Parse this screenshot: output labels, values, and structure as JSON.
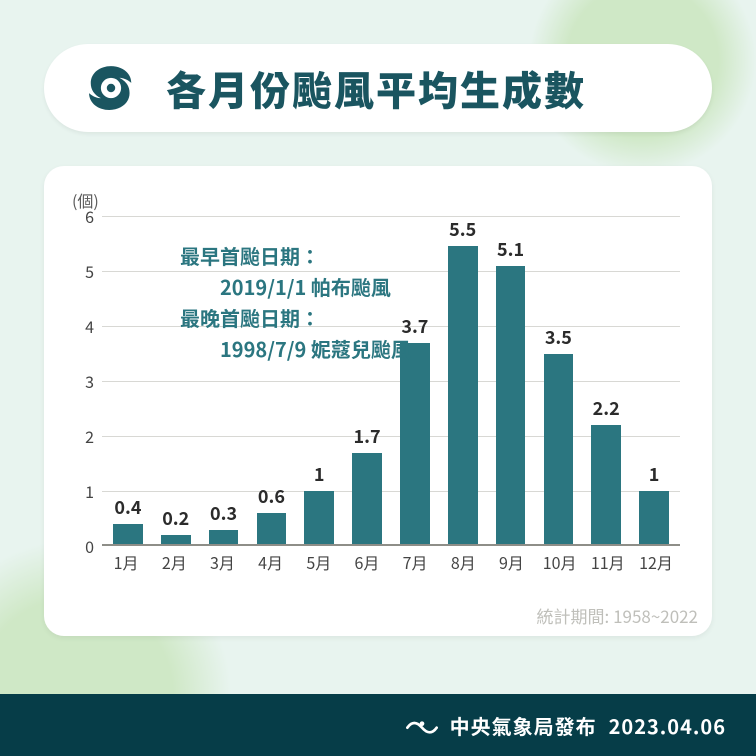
{
  "colors": {
    "background": "#e8f4ef",
    "land": "#cfe8c6",
    "card": "#ffffff",
    "title_text": "#1a5560",
    "icon_fill": "#1a5560",
    "bar_fill": "#2b7680",
    "gridline": "#d8d8d4",
    "baseline": "#8e8e88",
    "axis_text": "#444444",
    "value_text": "#2b2b2b",
    "annot_text": "#2b7680",
    "stat_period_text": "#bfbfba",
    "footer_bg": "#063d48",
    "footer_text": "#ffffff"
  },
  "title": "各月份颱風平均生成數",
  "chart": {
    "type": "bar",
    "y_unit_label": "(個)",
    "ylim": [
      0,
      6
    ],
    "ytick_step": 1,
    "yticks": [
      0,
      1,
      2,
      3,
      4,
      5,
      6
    ],
    "categories": [
      "1月",
      "2月",
      "3月",
      "4月",
      "5月",
      "6月",
      "7月",
      "8月",
      "9月",
      "10月",
      "11月",
      "12月"
    ],
    "values": [
      0.4,
      0.2,
      0.3,
      0.6,
      1,
      1.7,
      3.7,
      5.5,
      5.1,
      3.5,
      2.2,
      1
    ],
    "value_labels": [
      "0.4",
      "0.2",
      "0.3",
      "0.6",
      "1",
      "1.7",
      "3.7",
      "5.5",
      "5.1",
      "3.5",
      "2.2",
      "1"
    ],
    "bar_width_ratio": 0.62,
    "value_fontsize_pt": 14,
    "axis_fontsize_pt": 12
  },
  "annotation": {
    "lines": [
      "最早首颱日期：",
      "　　2019/1/1 帕布颱風",
      "最晚首颱日期：",
      "　　1998/7/9 妮蔻兒颱風"
    ]
  },
  "stat_period": "統計期間: 1958~2022",
  "footer": {
    "org_label": "中央氣象局發布",
    "date": "2023.04.06"
  }
}
